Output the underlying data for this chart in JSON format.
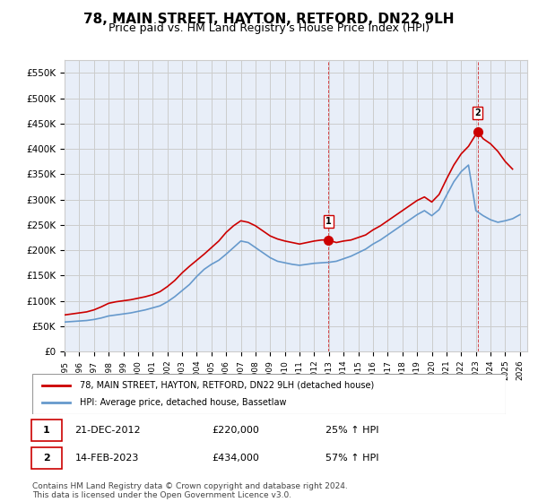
{
  "title": "78, MAIN STREET, HAYTON, RETFORD, DN22 9LH",
  "subtitle": "Price paid vs. HM Land Registry's House Price Index (HPI)",
  "title_fontsize": 11,
  "subtitle_fontsize": 9,
  "ylabel_ticks": [
    "£0",
    "£50K",
    "£100K",
    "£150K",
    "£200K",
    "£250K",
    "£300K",
    "£350K",
    "£400K",
    "£450K",
    "£500K",
    "£550K"
  ],
  "ytick_vals": [
    0,
    50000,
    100000,
    150000,
    200000,
    250000,
    300000,
    350000,
    400000,
    450000,
    500000,
    550000
  ],
  "ylim": [
    0,
    575000
  ],
  "xlim_start": 1995.0,
  "xlim_end": 2026.5,
  "xtick_labels": [
    "1995",
    "1996",
    "1997",
    "1998",
    "1999",
    "2000",
    "2001",
    "2002",
    "2003",
    "2004",
    "2005",
    "2006",
    "2007",
    "2008",
    "2009",
    "2010",
    "2011",
    "2012",
    "2013",
    "2014",
    "2015",
    "2016",
    "2017",
    "2018",
    "2019",
    "2020",
    "2021",
    "2022",
    "2023",
    "2024",
    "2025",
    "2026"
  ],
  "grid_color": "#cccccc",
  "bg_color": "#e8eef8",
  "plot_bg_color": "#e8eef8",
  "red_line_color": "#cc0000",
  "blue_line_color": "#6699cc",
  "marker1_x": 2012.97,
  "marker1_y": 220000,
  "marker1_label": "1",
  "marker2_x": 2023.12,
  "marker2_y": 434000,
  "marker2_label": "2",
  "legend_red_label": "78, MAIN STREET, HAYTON, RETFORD, DN22 9LH (detached house)",
  "legend_blue_label": "HPI: Average price, detached house, Bassetlaw",
  "annotation1_num": "1",
  "annotation1_date": "21-DEC-2012",
  "annotation1_price": "£220,000",
  "annotation1_hpi": "25% ↑ HPI",
  "annotation2_num": "2",
  "annotation2_date": "14-FEB-2023",
  "annotation2_price": "£434,000",
  "annotation2_hpi": "57% ↑ HPI",
  "footer": "Contains HM Land Registry data © Crown copyright and database right 2024.\nThis data is licensed under the Open Government Licence v3.0.",
  "red_x": [
    1995.0,
    1995.5,
    1996.0,
    1996.5,
    1997.0,
    1997.5,
    1998.0,
    1998.5,
    1999.0,
    1999.5,
    2000.0,
    2000.5,
    2001.0,
    2001.5,
    2002.0,
    2002.5,
    2003.0,
    2003.5,
    2004.0,
    2004.5,
    2005.0,
    2005.5,
    2006.0,
    2006.5,
    2007.0,
    2007.5,
    2008.0,
    2008.5,
    2009.0,
    2009.5,
    2010.0,
    2010.5,
    2011.0,
    2011.5,
    2012.0,
    2012.5,
    2012.97,
    2013.5,
    2014.0,
    2014.5,
    2015.0,
    2015.5,
    2016.0,
    2016.5,
    2017.0,
    2017.5,
    2018.0,
    2018.5,
    2019.0,
    2019.5,
    2020.0,
    2020.5,
    2021.0,
    2021.5,
    2022.0,
    2022.5,
    2023.12,
    2023.5,
    2024.0,
    2024.5,
    2025.0,
    2025.5
  ],
  "red_y": [
    72000,
    74000,
    76000,
    78000,
    82000,
    88000,
    95000,
    98000,
    100000,
    102000,
    105000,
    108000,
    112000,
    118000,
    128000,
    140000,
    155000,
    168000,
    180000,
    192000,
    205000,
    218000,
    235000,
    248000,
    258000,
    255000,
    248000,
    238000,
    228000,
    222000,
    218000,
    215000,
    212000,
    215000,
    218000,
    220000,
    220000,
    215000,
    218000,
    220000,
    225000,
    230000,
    240000,
    248000,
    258000,
    268000,
    278000,
    288000,
    298000,
    305000,
    295000,
    310000,
    340000,
    368000,
    390000,
    405000,
    434000,
    420000,
    410000,
    395000,
    375000,
    360000
  ],
  "blue_x": [
    1995.0,
    1995.5,
    1996.0,
    1996.5,
    1997.0,
    1997.5,
    1998.0,
    1998.5,
    1999.0,
    1999.5,
    2000.0,
    2000.5,
    2001.0,
    2001.5,
    2002.0,
    2002.5,
    2003.0,
    2003.5,
    2004.0,
    2004.5,
    2005.0,
    2005.5,
    2006.0,
    2006.5,
    2007.0,
    2007.5,
    2008.0,
    2008.5,
    2009.0,
    2009.5,
    2010.0,
    2010.5,
    2011.0,
    2011.5,
    2012.0,
    2012.5,
    2013.0,
    2013.5,
    2014.0,
    2014.5,
    2015.0,
    2015.5,
    2016.0,
    2016.5,
    2017.0,
    2017.5,
    2018.0,
    2018.5,
    2019.0,
    2019.5,
    2020.0,
    2020.5,
    2021.0,
    2021.5,
    2022.0,
    2022.5,
    2023.0,
    2023.5,
    2024.0,
    2024.5,
    2025.0,
    2025.5,
    2026.0
  ],
  "blue_y": [
    58000,
    59000,
    60000,
    61000,
    63000,
    66000,
    70000,
    72000,
    74000,
    76000,
    79000,
    82000,
    86000,
    90000,
    98000,
    108000,
    120000,
    132000,
    148000,
    162000,
    172000,
    180000,
    192000,
    205000,
    218000,
    215000,
    205000,
    195000,
    185000,
    178000,
    175000,
    172000,
    170000,
    172000,
    174000,
    175000,
    176000,
    178000,
    183000,
    188000,
    195000,
    202000,
    212000,
    220000,
    230000,
    240000,
    250000,
    260000,
    270000,
    278000,
    268000,
    280000,
    308000,
    335000,
    355000,
    368000,
    278000,
    268000,
    260000,
    255000,
    258000,
    262000,
    270000
  ]
}
